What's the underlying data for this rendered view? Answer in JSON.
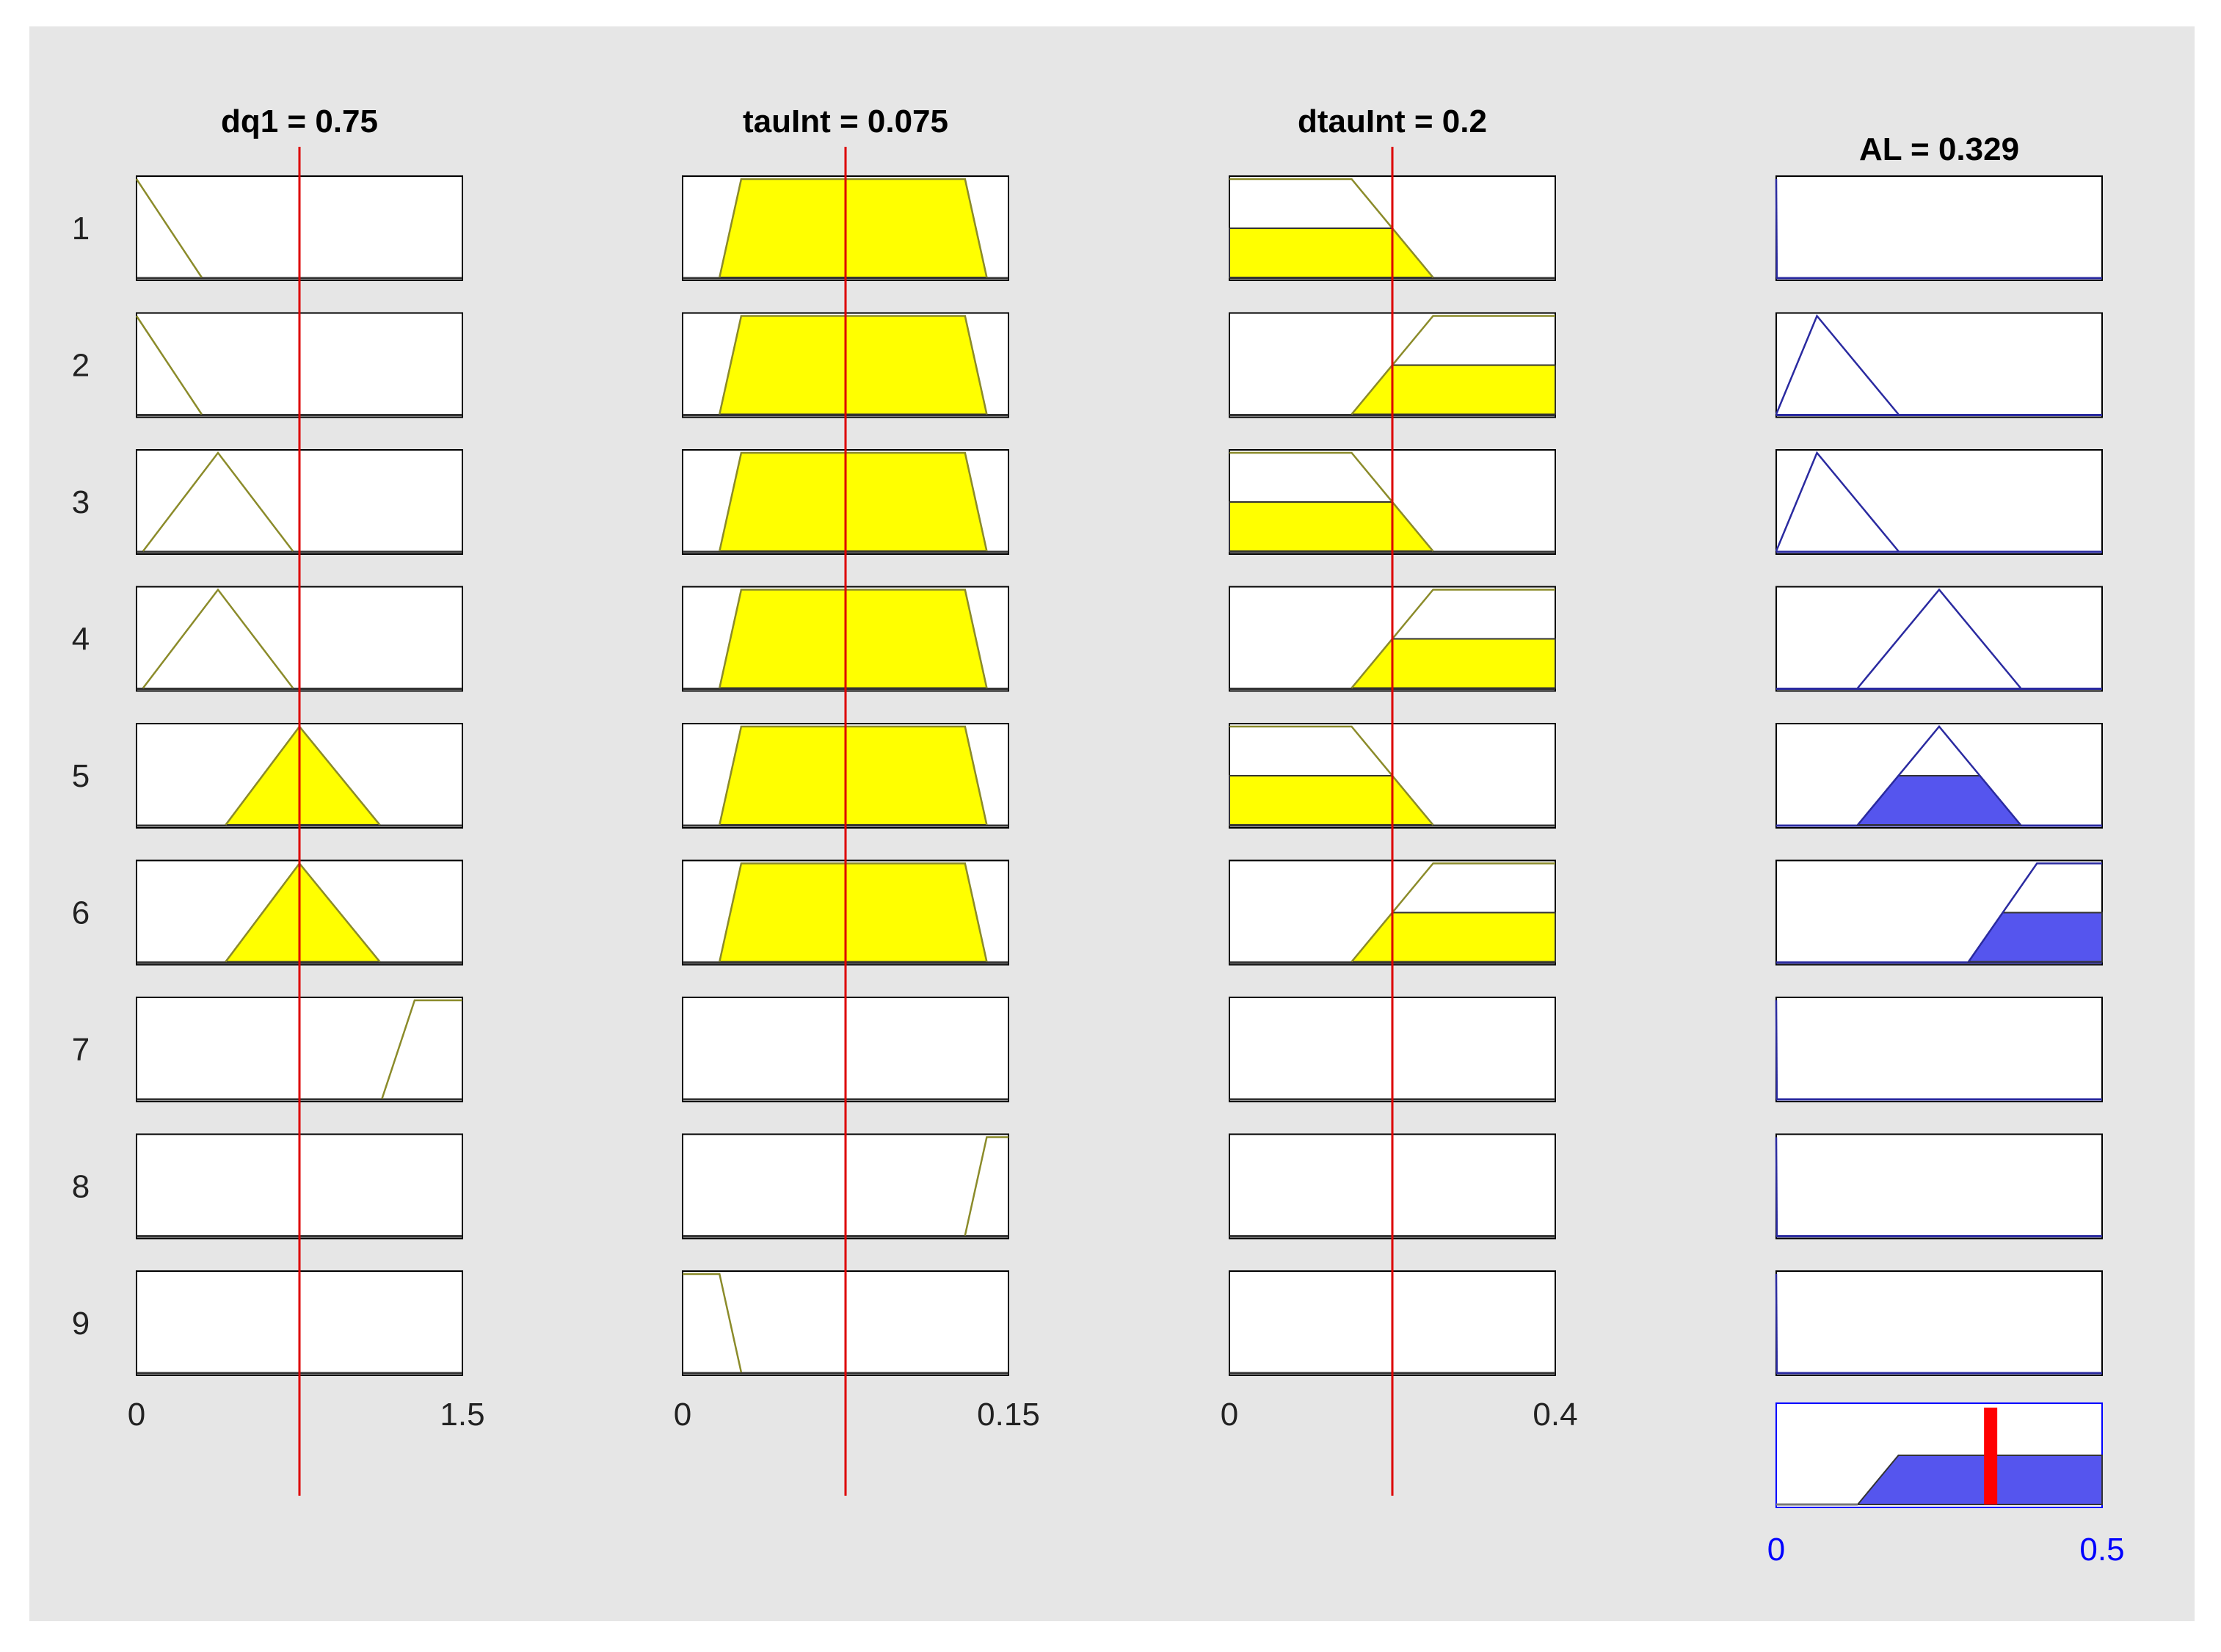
{
  "figure": {
    "background": "#e6e6e6",
    "plot_background": "#ffffff",
    "input_color": "#ffff00",
    "input_line_color": "#8b8b2a",
    "output_fill_color": "#5555ee",
    "output_line_color": "#2a2aa0",
    "cursor_color": "#dd0000",
    "output_marker_color": "#ff0000",
    "output_axis_label_color": "#0000ff"
  },
  "rows": [
    "1",
    "2",
    "3",
    "4",
    "5",
    "6",
    "7",
    "8",
    "9"
  ],
  "inputs": [
    {
      "title": "dq1 = 0.75",
      "value": 0.75,
      "range": [
        0,
        1.5
      ],
      "tick_min": "0",
      "tick_max": "1.5",
      "mfs": [
        {
          "rule": 1,
          "points": [
            [
              0,
              1
            ],
            [
              0.3,
              0
            ]
          ],
          "degree": 0
        },
        {
          "rule": 2,
          "points": [
            [
              0,
              1
            ],
            [
              0.3,
              0
            ]
          ],
          "degree": 0
        },
        {
          "rule": 3,
          "points": [
            [
              0.03,
              0
            ],
            [
              0.375,
              1
            ],
            [
              0.72,
              0
            ]
          ],
          "degree": 0
        },
        {
          "rule": 4,
          "points": [
            [
              0.03,
              0
            ],
            [
              0.375,
              1
            ],
            [
              0.72,
              0
            ]
          ],
          "degree": 0
        },
        {
          "rule": 5,
          "points": [
            [
              0.41,
              0
            ],
            [
              0.75,
              1
            ],
            [
              1.12,
              0
            ]
          ],
          "degree": 1
        },
        {
          "rule": 6,
          "points": [
            [
              0.41,
              0
            ],
            [
              0.75,
              1
            ],
            [
              1.12,
              0
            ]
          ],
          "degree": 1
        },
        {
          "rule": 7,
          "points": [
            [
              1.13,
              0
            ],
            [
              1.28,
              1
            ],
            [
              1.5,
              1
            ]
          ],
          "degree": 0
        },
        {
          "rule": 8,
          "points": [],
          "degree": 0
        },
        {
          "rule": 9,
          "points": [],
          "degree": 0
        }
      ]
    },
    {
      "title": "tauInt = 0.075",
      "value": 0.075,
      "range": [
        0,
        0.15
      ],
      "tick_min": "0",
      "tick_max": "0.15",
      "mfs": [
        {
          "rule": 1,
          "points": [
            [
              0.017,
              0
            ],
            [
              0.027,
              1
            ],
            [
              0.13,
              1
            ],
            [
              0.14,
              0
            ]
          ],
          "degree": 1
        },
        {
          "rule": 2,
          "points": [
            [
              0.017,
              0
            ],
            [
              0.027,
              1
            ],
            [
              0.13,
              1
            ],
            [
              0.14,
              0
            ]
          ],
          "degree": 1
        },
        {
          "rule": 3,
          "points": [
            [
              0.017,
              0
            ],
            [
              0.027,
              1
            ],
            [
              0.13,
              1
            ],
            [
              0.14,
              0
            ]
          ],
          "degree": 1
        },
        {
          "rule": 4,
          "points": [
            [
              0.017,
              0
            ],
            [
              0.027,
              1
            ],
            [
              0.13,
              1
            ],
            [
              0.14,
              0
            ]
          ],
          "degree": 1
        },
        {
          "rule": 5,
          "points": [
            [
              0.017,
              0
            ],
            [
              0.027,
              1
            ],
            [
              0.13,
              1
            ],
            [
              0.14,
              0
            ]
          ],
          "degree": 1
        },
        {
          "rule": 6,
          "points": [
            [
              0.017,
              0
            ],
            [
              0.027,
              1
            ],
            [
              0.13,
              1
            ],
            [
              0.14,
              0
            ]
          ],
          "degree": 1
        },
        {
          "rule": 7,
          "points": [],
          "degree": 0
        },
        {
          "rule": 8,
          "points": [
            [
              0.13,
              0
            ],
            [
              0.14,
              1
            ],
            [
              0.15,
              1
            ]
          ],
          "degree": 0
        },
        {
          "rule": 9,
          "points": [
            [
              0,
              1
            ],
            [
              0.017,
              1
            ],
            [
              0.027,
              0
            ]
          ],
          "degree": 0
        }
      ]
    },
    {
      "title": "dtauInt = 0.2",
      "value": 0.2,
      "range": [
        0,
        0.4
      ],
      "tick_min": "0",
      "tick_max": "0.4",
      "mfs": [
        {
          "rule": 1,
          "points": [
            [
              0,
              1
            ],
            [
              0.15,
              1
            ],
            [
              0.25,
              0
            ]
          ],
          "degree": 0.5
        },
        {
          "rule": 2,
          "points": [
            [
              0.15,
              0
            ],
            [
              0.25,
              1
            ],
            [
              0.4,
              1
            ]
          ],
          "degree": 0.5
        },
        {
          "rule": 3,
          "points": [
            [
              0,
              1
            ],
            [
              0.15,
              1
            ],
            [
              0.25,
              0
            ]
          ],
          "degree": 0.5
        },
        {
          "rule": 4,
          "points": [
            [
              0.15,
              0
            ],
            [
              0.25,
              1
            ],
            [
              0.4,
              1
            ]
          ],
          "degree": 0.5
        },
        {
          "rule": 5,
          "points": [
            [
              0,
              1
            ],
            [
              0.15,
              1
            ],
            [
              0.25,
              0
            ]
          ],
          "degree": 0.5
        },
        {
          "rule": 6,
          "points": [
            [
              0.15,
              0
            ],
            [
              0.25,
              1
            ],
            [
              0.4,
              1
            ]
          ],
          "degree": 0.5
        },
        {
          "rule": 7,
          "points": [],
          "degree": 0
        },
        {
          "rule": 8,
          "points": [],
          "degree": 0
        },
        {
          "rule": 9,
          "points": [],
          "degree": 0
        }
      ]
    }
  ],
  "output": {
    "title": "AL = 0.329",
    "value": 0.329,
    "range": [
      0,
      0.5
    ],
    "tick_min": "0",
    "tick_max": "0.5",
    "mfs": [
      {
        "rule": 1,
        "points": [
          [
            0,
            1
          ],
          [
            0.001,
            0
          ]
        ],
        "degree": 0
      },
      {
        "rule": 2,
        "points": [
          [
            0,
            0
          ],
          [
            0.0625,
            1
          ],
          [
            0.1875,
            0
          ]
        ],
        "degree": 0
      },
      {
        "rule": 3,
        "points": [
          [
            0,
            0
          ],
          [
            0.0625,
            1
          ],
          [
            0.1875,
            0
          ]
        ],
        "degree": 0
      },
      {
        "rule": 4,
        "points": [
          [
            0.125,
            0
          ],
          [
            0.25,
            1
          ],
          [
            0.375,
            0
          ]
        ],
        "degree": 0
      },
      {
        "rule": 5,
        "points": [
          [
            0.125,
            0
          ],
          [
            0.25,
            1
          ],
          [
            0.375,
            0
          ]
        ],
        "degree": 0.5
      },
      {
        "rule": 6,
        "points": [
          [
            0.295,
            0
          ],
          [
            0.4,
            1
          ],
          [
            0.5,
            1
          ]
        ],
        "degree": 0.5
      },
      {
        "rule": 7,
        "points": [
          [
            0,
            1
          ],
          [
            0.001,
            0
          ]
        ],
        "degree": 0
      },
      {
        "rule": 8,
        "points": [
          [
            0,
            1
          ],
          [
            0.001,
            0
          ]
        ],
        "degree": 0
      },
      {
        "rule": 9,
        "points": [
          [
            0,
            1
          ],
          [
            0.001,
            0
          ]
        ],
        "degree": 0
      }
    ],
    "aggregate": {
      "points": [
        [
          0,
          0
        ],
        [
          0.125,
          0
        ],
        [
          0.1875,
          0.5
        ],
        [
          0.5,
          0.5
        ]
      ],
      "degree": 1
    }
  }
}
